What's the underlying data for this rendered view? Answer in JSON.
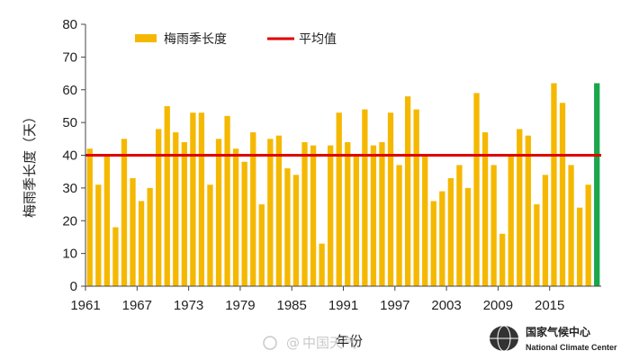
{
  "chart_data": {
    "type": "bar",
    "x": [
      1961,
      1962,
      1963,
      1964,
      1965,
      1966,
      1967,
      1968,
      1969,
      1970,
      1971,
      1972,
      1973,
      1974,
      1975,
      1976,
      1977,
      1978,
      1979,
      1980,
      1981,
      1982,
      1983,
      1984,
      1985,
      1986,
      1987,
      1988,
      1989,
      1990,
      1991,
      1992,
      1993,
      1994,
      1995,
      1996,
      1997,
      1998,
      1999,
      2000,
      2001,
      2002,
      2003,
      2004,
      2005,
      2006,
      2007,
      2008,
      2009,
      2010,
      2011,
      2012,
      2013,
      2014,
      2015,
      2016,
      2017,
      2018,
      2019,
      2020
    ],
    "series": [
      {
        "name": "梅雨季长度",
        "values": [
          42,
          31,
          40,
          18,
          45,
          33,
          26,
          30,
          48,
          55,
          47,
          44,
          53,
          53,
          31,
          45,
          52,
          42,
          38,
          47,
          25,
          45,
          46,
          36,
          34,
          44,
          43,
          13,
          43,
          53,
          44,
          40,
          54,
          43,
          44,
          53,
          37,
          58,
          54,
          40,
          26,
          29,
          33,
          37,
          30,
          59,
          47,
          37,
          16,
          40,
          48,
          46,
          25,
          34,
          62,
          56,
          37,
          24,
          31,
          62
        ],
        "color": "#f5b800",
        "highlight_last_color": "#1aa64a"
      }
    ],
    "average": {
      "label": "平均值",
      "value": 40,
      "color": "#e00000"
    },
    "ylabel": "梅雨季长度（天）",
    "xlabel": "年份",
    "ylim": [
      0,
      80
    ],
    "yticks": [
      "0",
      "10",
      "20",
      "30",
      "40",
      "50",
      "60",
      "70",
      "80"
    ],
    "xtick_labels": [
      "1961",
      "1967",
      "1973",
      "1979",
      "1985",
      "1991",
      "1997",
      "2003",
      "2009",
      "2015"
    ],
    "grid": false,
    "legend_position": "top-left"
  },
  "watermark": {
    "symbol": "@",
    "text": "中国天气"
  },
  "logo": {
    "name_cn": "国家气候中心",
    "name_en": "National Climate Center"
  }
}
